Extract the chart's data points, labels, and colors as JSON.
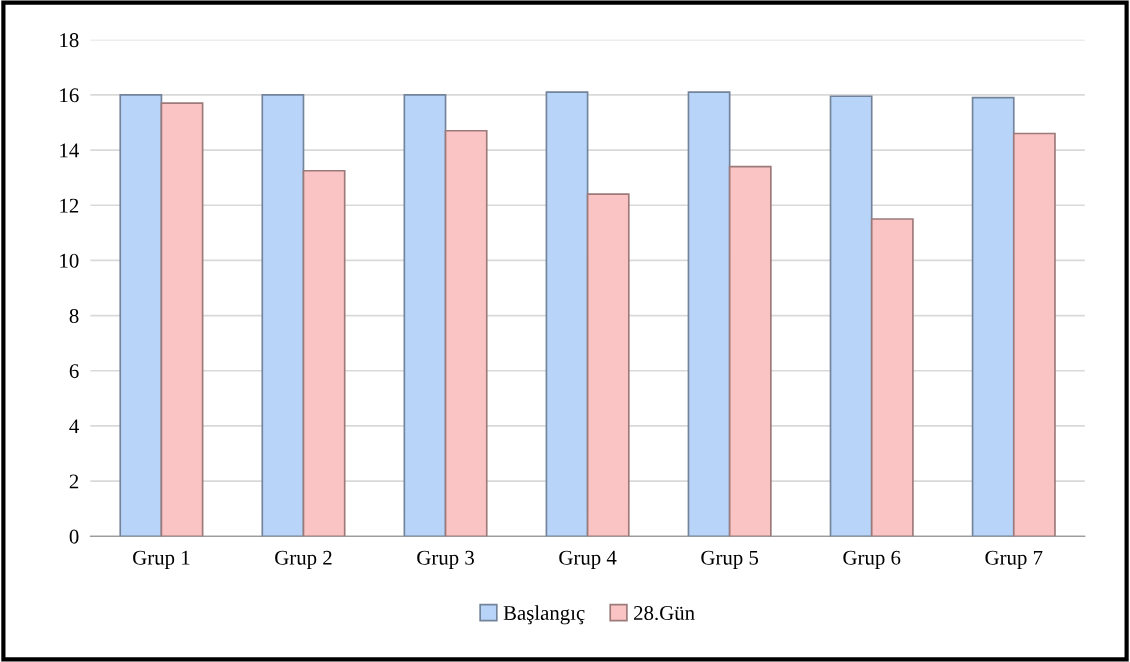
{
  "chart_data": {
    "type": "bar",
    "categories": [
      "Grup 1",
      "Grup 2",
      "Grup 3",
      "Grup 4",
      "Grup 5",
      "Grup 6",
      "Grup 7"
    ],
    "series": [
      {
        "name": "Başlangıç",
        "color": "#b8d4f8",
        "values": [
          16.0,
          16.0,
          16.0,
          16.1,
          16.1,
          15.95,
          15.9
        ]
      },
      {
        "name": "28.Gün",
        "color": "#fbc4c4",
        "values": [
          15.7,
          13.25,
          14.7,
          12.4,
          13.4,
          11.5,
          14.6
        ]
      }
    ],
    "ylim": [
      0,
      18
    ],
    "yticks": [
      0,
      2,
      4,
      6,
      8,
      10,
      12,
      14,
      16,
      18
    ],
    "grid": "y",
    "legend": "bottom"
  }
}
